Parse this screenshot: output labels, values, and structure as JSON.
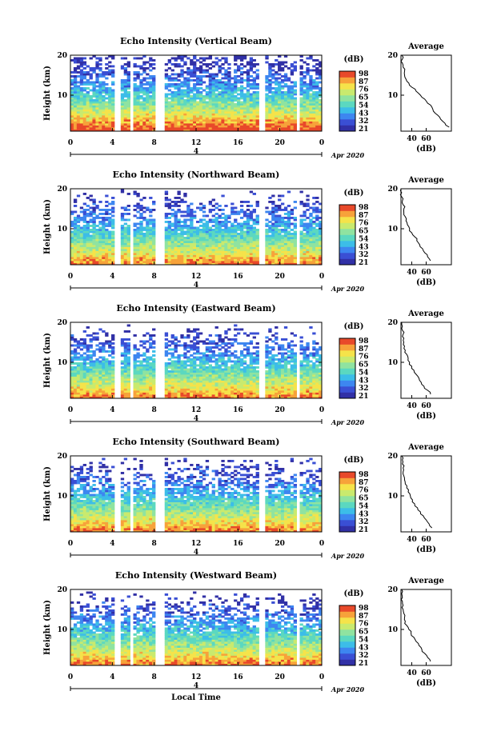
{
  "chart_data": {
    "type": "heatmap",
    "panels": [
      {
        "title": "Echo Intensity (Vertical Beam)",
        "avg_profile": [
          [
            2,
            92
          ],
          [
            3,
            86
          ],
          [
            4,
            80
          ],
          [
            5,
            76
          ],
          [
            6,
            70
          ],
          [
            7,
            68
          ],
          [
            8,
            62
          ],
          [
            9,
            58
          ],
          [
            10,
            52
          ],
          [
            11,
            46
          ],
          [
            12,
            40
          ],
          [
            13,
            36
          ],
          [
            14,
            32
          ],
          [
            15,
            30
          ],
          [
            16,
            30
          ],
          [
            17,
            28
          ],
          [
            18,
            27
          ],
          [
            19,
            27
          ],
          [
            20,
            26
          ]
        ]
      },
      {
        "title": "Echo Intensity (Northward Beam)",
        "avg_profile": [
          [
            2,
            66
          ],
          [
            3,
            62
          ],
          [
            4,
            58
          ],
          [
            5,
            55
          ],
          [
            6,
            51
          ],
          [
            7,
            47
          ],
          [
            8,
            44
          ],
          [
            9,
            40
          ],
          [
            10,
            37
          ],
          [
            11,
            34
          ],
          [
            12,
            32
          ],
          [
            13,
            31
          ],
          [
            14,
            29
          ],
          [
            15,
            29
          ],
          [
            16,
            28
          ],
          [
            17,
            27
          ],
          [
            18,
            26
          ],
          [
            19,
            26
          ],
          [
            20,
            25
          ]
        ]
      },
      {
        "title": "Echo Intensity (Eastward Beam)",
        "avg_profile": [
          [
            2,
            66
          ],
          [
            3,
            62
          ],
          [
            4,
            57
          ],
          [
            5,
            53
          ],
          [
            6,
            50
          ],
          [
            7,
            46
          ],
          [
            8,
            43
          ],
          [
            9,
            40
          ],
          [
            10,
            37
          ],
          [
            11,
            35
          ],
          [
            12,
            33
          ],
          [
            13,
            31
          ],
          [
            14,
            30
          ],
          [
            15,
            29
          ],
          [
            16,
            29
          ],
          [
            17,
            28
          ],
          [
            18,
            27
          ],
          [
            19,
            27
          ],
          [
            20,
            26
          ]
        ]
      },
      {
        "title": "Echo Intensity (Southward Beam)",
        "avg_profile": [
          [
            2,
            68
          ],
          [
            3,
            64
          ],
          [
            4,
            60
          ],
          [
            5,
            56
          ],
          [
            6,
            52
          ],
          [
            7,
            48
          ],
          [
            8,
            44
          ],
          [
            9,
            41
          ],
          [
            10,
            38
          ],
          [
            11,
            35
          ],
          [
            12,
            33
          ],
          [
            13,
            31
          ],
          [
            14,
            30
          ],
          [
            15,
            29
          ],
          [
            16,
            28
          ],
          [
            17,
            28
          ],
          [
            18,
            27
          ],
          [
            19,
            27
          ],
          [
            20,
            26
          ]
        ]
      },
      {
        "title": "Echo Intensity (Westward Beam)",
        "avg_profile": [
          [
            2,
            66
          ],
          [
            3,
            62
          ],
          [
            4,
            58
          ],
          [
            5,
            54
          ],
          [
            6,
            50
          ],
          [
            7,
            46
          ],
          [
            8,
            43
          ],
          [
            9,
            39
          ],
          [
            10,
            36
          ],
          [
            11,
            33
          ],
          [
            12,
            31
          ],
          [
            13,
            30
          ],
          [
            14,
            29
          ],
          [
            15,
            28
          ],
          [
            16,
            28
          ],
          [
            17,
            27
          ],
          [
            18,
            27
          ],
          [
            19,
            26
          ],
          [
            20,
            26
          ]
        ]
      }
    ],
    "x_ticks": [
      "0",
      "4",
      "8",
      "12",
      "16",
      "20",
      "0"
    ],
    "x_range": [
      0,
      24
    ],
    "y_ticks": [
      "20",
      "10"
    ],
    "y_range": [
      1,
      20
    ],
    "ylabel": "Height (km)",
    "xlabel": "Local Time",
    "date_mark": "4",
    "date_suffix": "Apr 2020",
    "colorbar": {
      "label": "(dB)",
      "ticks": [
        "98",
        "87",
        "76",
        "65",
        "54",
        "43",
        "32",
        "21"
      ]
    },
    "avg": {
      "title": "Average",
      "xlabel": "(dB)",
      "x_ticks": [
        "40",
        "60"
      ],
      "x_range": [
        25,
        95
      ],
      "y_ticks": [
        "20",
        "10"
      ]
    },
    "gaps_hours": [
      [
        4.2,
        4.7
      ],
      [
        5.6,
        6.1
      ],
      [
        8.1,
        9.0
      ],
      [
        18.0,
        18.6
      ],
      [
        21.5,
        22.0
      ]
    ],
    "colors": [
      "#3130a6",
      "#3a4fd4",
      "#3d86f0",
      "#3cbde8",
      "#5bd8c0",
      "#8fe3a0",
      "#c9ea6e",
      "#f5e34a",
      "#f7a23a",
      "#e8492a"
    ]
  }
}
